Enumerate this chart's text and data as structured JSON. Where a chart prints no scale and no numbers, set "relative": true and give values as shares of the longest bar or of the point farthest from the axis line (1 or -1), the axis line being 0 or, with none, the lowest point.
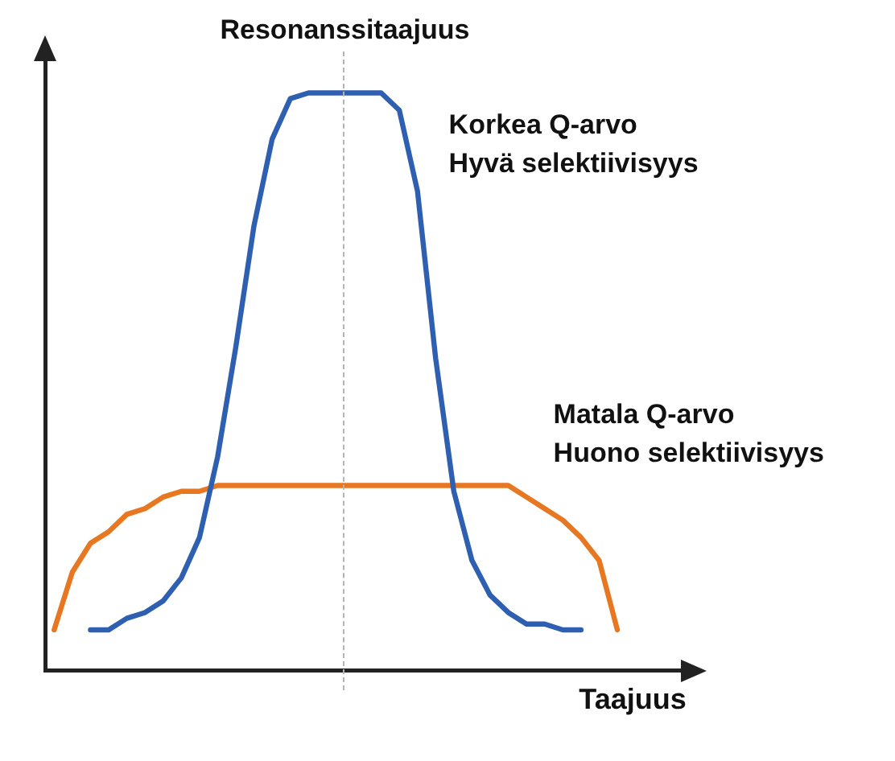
{
  "chart_data": {
    "type": "line",
    "relative": true,
    "xlabel": "Taajuus",
    "legend": false,
    "marker": "none",
    "line_style": "solid",
    "annotations": [
      "Resonanssitaajuus"
    ],
    "categories": [
      null,
      null,
      null,
      null,
      null,
      null,
      null,
      null,
      null,
      null,
      null,
      null,
      null,
      null,
      null,
      null,
      null,
      null,
      null,
      null,
      null,
      null,
      null,
      null,
      null,
      null,
      null,
      null,
      null,
      null,
      null,
      null,
      null,
      null,
      null
    ],
    "series": [
      {
        "name": "Korkea Q-arvo\nHyvä selektiivisyys",
        "color": "#2f5fb0",
        "values": [
          null,
          null,
          0.07,
          0.07,
          0.09,
          0.1,
          0.12,
          0.16,
          0.23,
          0.37,
          0.56,
          0.77,
          0.92,
          0.99,
          1,
          1,
          1,
          1,
          1,
          0.97,
          0.83,
          0.54,
          0.31,
          0.19,
          0.13,
          0.1,
          0.08,
          0.08,
          0.07,
          0.07,
          null,
          null,
          null,
          null,
          null
        ]
      },
      {
        "name": "Matala Q-arvo\nHuono selektiivisyys",
        "color": "#e87722",
        "values": [
          0.07,
          0.17,
          0.22,
          0.24,
          0.27,
          0.28,
          0.3,
          0.31,
          0.31,
          0.32,
          0.32,
          0.32,
          0.32,
          0.32,
          0.32,
          0.32,
          0.32,
          0.32,
          0.32,
          0.32,
          0.32,
          0.32,
          0.32,
          0.32,
          0.32,
          0.32,
          0.3,
          0.28,
          0.26,
          0.23,
          0.19,
          0.07,
          null,
          null,
          null
        ]
      }
    ]
  }
}
